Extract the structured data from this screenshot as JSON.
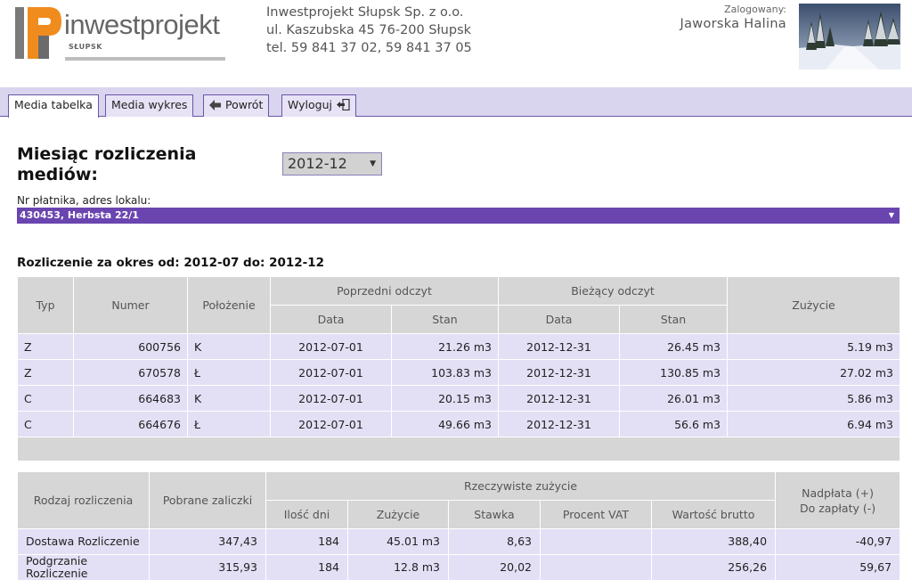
{
  "header": {
    "logo_text": "inwestprojekt",
    "logo_sub": "SŁUPSK",
    "company_name": "Inwestprojekt Słupsk Sp. z o.o.",
    "company_address": "ul. Kaszubska 45 76-200 Słupsk",
    "company_phone": "tel. 59 841 37 02, 59 841 37 05",
    "user_label": "Zalogowany:",
    "user_name": "Jaworska Halina"
  },
  "tabs": [
    {
      "label": "Media tabelka",
      "active": true
    },
    {
      "label": "Media wykres",
      "active": false
    },
    {
      "label": "Powrót",
      "icon": "back-arrow-icon"
    },
    {
      "label": "Wyloguj",
      "icon": "logout-icon"
    }
  ],
  "form": {
    "month_title": "Miesiąc rozliczenia mediów:",
    "month_value": "2012-12",
    "payer_label": "Nr płatnika, adres lokalu:",
    "payer_value": "430453, Herbsta 22/1"
  },
  "period_text": "Rozliczenie za okres od: 2012-07 do: 2012-12",
  "readings": {
    "headers": {
      "typ": "Typ",
      "numer": "Numer",
      "polozenie": "Położenie",
      "prev": "Poprzedni odczyt",
      "curr": "Bieżący odczyt",
      "data": "Data",
      "stan": "Stan",
      "zuzycie": "Zużycie"
    },
    "rows": [
      {
        "typ": "Z",
        "numer": "600756",
        "polozenie": "K",
        "prev_date": "2012-07-01",
        "prev_stan": "21.26 m3",
        "curr_date": "2012-12-31",
        "curr_stan": "26.45 m3",
        "zuzycie": "5.19 m3"
      },
      {
        "typ": "Z",
        "numer": "670578",
        "polozenie": "Ł",
        "prev_date": "2012-07-01",
        "prev_stan": "103.83 m3",
        "curr_date": "2012-12-31",
        "curr_stan": "130.85 m3",
        "zuzycie": "27.02 m3"
      },
      {
        "typ": "C",
        "numer": "664683",
        "polozenie": "K",
        "prev_date": "2012-07-01",
        "prev_stan": "20.15 m3",
        "curr_date": "2012-12-31",
        "curr_stan": "26.01 m3",
        "zuzycie": "5.86 m3"
      },
      {
        "typ": "C",
        "numer": "664676",
        "polozenie": "Ł",
        "prev_date": "2012-07-01",
        "prev_stan": "49.66 m3",
        "curr_date": "2012-12-31",
        "curr_stan": "56.6 m3",
        "zuzycie": "6.94 m3"
      }
    ]
  },
  "settlement": {
    "headers": {
      "rodzaj": "Rodzaj rozliczenia",
      "pobrane": "Pobrane zaliczki",
      "rzeczywiste": "Rzeczywiste zużycie",
      "ilosc_dni": "Ilość dni",
      "zuzycie": "Zużycie",
      "stawka": "Stawka",
      "procent_vat": "Procent VAT",
      "wartosc_brutto": "Wartość brutto",
      "nadplata": "Nadpłata (+)",
      "do_zaplaty": "Do zapłaty (-)"
    },
    "rows": [
      {
        "rodzaj": "Dostawa Rozliczenie",
        "pobrane": "347,43",
        "ilosc_dni": "184",
        "zuzycie": "45.01 m3",
        "stawka": "8,63",
        "procent_vat": "",
        "wartosc_brutto": "388,40",
        "saldo": "-40,97"
      },
      {
        "rodzaj": "Podgrzanie Rozliczenie",
        "pobrane": "315,93",
        "ilosc_dni": "184",
        "zuzycie": "12.8 m3",
        "stawka": "20,02",
        "procent_vat": "",
        "wartosc_brutto": "256,26",
        "saldo": "59,67"
      }
    ]
  },
  "colors": {
    "accent": "#6a45b0",
    "tab_bar": "#dad5ee",
    "row_bg": "#e3dff5",
    "header_bg": "#d6d6d6",
    "logo_orange": "#f08b1d"
  }
}
